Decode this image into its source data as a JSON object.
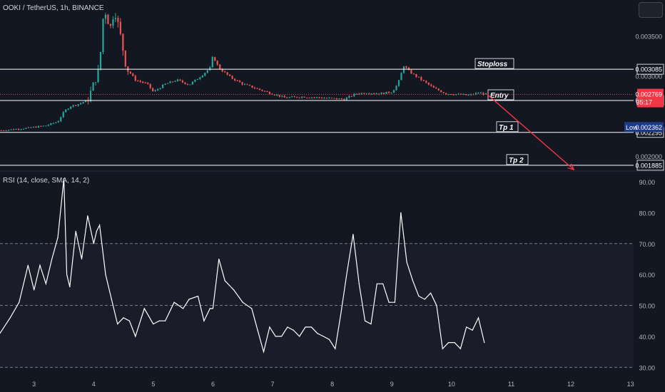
{
  "symbol_title": "OOKI / TetherUS, 1h, BINANCE",
  "rsi_title": "RSI (14, close, SMA, 14, 2)",
  "colors": {
    "background": "#131722",
    "up": "#26a69a",
    "down": "#ef5350",
    "rsi_line": "#ffffff",
    "level_line": "#ffffff",
    "projection_arrow": "#f23645",
    "current_price_tag": "#f23645",
    "low_tag": "#1e3a8a",
    "rsi_band": "#1a1d29"
  },
  "levels": [
    {
      "name": "Stoploss",
      "value": "0.003085",
      "label": "Stoploss"
    },
    {
      "name": "Entry",
      "value": "0.002694",
      "label": "Entry"
    },
    {
      "name": "Tp 1",
      "value": "0.002295",
      "label": "Tp 1"
    },
    {
      "name": "Tp 2",
      "value": "0.001885",
      "label": "Tp 2"
    }
  ],
  "price_scale": {
    "ticks": [
      "0.003500",
      "0.003000",
      "0.002000"
    ]
  },
  "current_price": {
    "value": "0.002769",
    "countdown": "35:17"
  },
  "low_marker": {
    "label": "Low",
    "value": "0.002362"
  },
  "rsi_scale": {
    "ticks": [
      "90.00",
      "80.00",
      "70.00",
      "60.00",
      "50.00",
      "40.00",
      "30.00"
    ]
  },
  "x_axis": {
    "ticks": [
      "3",
      "4",
      "5",
      "6",
      "7",
      "8",
      "9",
      "10",
      "11",
      "12",
      "13"
    ]
  },
  "chart_data": [
    {
      "type": "candlestick",
      "title": "OOKI / TetherUS, 1h, BINANCE",
      "x_unit": "day",
      "ylim": [
        0.00183,
        0.00395
      ],
      "xlim": [
        2.43,
        13.1
      ],
      "series": [
        {
          "name": "OOKI / TetherUS",
          "x": [
            2.45,
            2.9,
            3.2,
            3.4,
            3.5,
            3.6,
            3.75,
            3.9,
            4.0,
            4.1,
            4.15,
            4.2,
            4.28,
            4.35,
            4.45,
            4.55,
            4.7,
            4.9,
            5.0,
            5.2,
            5.4,
            5.6,
            5.8,
            5.95,
            6.0,
            6.1,
            6.3,
            6.5,
            6.7,
            6.9,
            7.2,
            7.5,
            7.8,
            8.0,
            8.2,
            8.4,
            8.6,
            8.8,
            9.0,
            9.1,
            9.2,
            9.3,
            9.5,
            9.7,
            9.9,
            10.1,
            10.3,
            10.45,
            10.6
          ],
          "close": [
            0.00232,
            0.00235,
            0.00238,
            0.00243,
            0.00255,
            0.00262,
            0.00265,
            0.0027,
            0.0029,
            0.0031,
            0.0037,
            0.0038,
            0.0036,
            0.00385,
            0.0035,
            0.0031,
            0.00295,
            0.0029,
            0.0028,
            0.0029,
            0.00295,
            0.00289,
            0.003,
            0.0031,
            0.00325,
            0.0031,
            0.00298,
            0.0029,
            0.00285,
            0.0028,
            0.00273,
            0.00274,
            0.00273,
            0.00272,
            0.00271,
            0.00278,
            0.00279,
            0.00278,
            0.0028,
            0.0029,
            0.00313,
            0.00305,
            0.00295,
            0.00285,
            0.00278,
            0.00277,
            0.00276,
            0.00279,
            0.00277
          ]
        }
      ],
      "levels": [
        {
          "name": "Stoploss",
          "value": 0.003085
        },
        {
          "name": "Entry",
          "value": 0.002694
        },
        {
          "name": "Tp 1",
          "value": 0.002295
        },
        {
          "name": "Tp 2",
          "value": 0.001885
        }
      ],
      "projection": {
        "from": {
          "x": 10.6,
          "y": 0.002769
        },
        "to": {
          "x": 12.05,
          "y": 0.00183
        }
      },
      "current_price": 0.002769,
      "low": 0.002362
    },
    {
      "type": "line",
      "title": "RSI (14, close, SMA, 14, 2)",
      "ylim": [
        28,
        93
      ],
      "band": [
        30,
        70
      ],
      "midline": 50,
      "series": [
        {
          "name": "RSI",
          "x": [
            2.43,
            2.6,
            2.75,
            2.9,
            3.0,
            3.1,
            3.2,
            3.3,
            3.4,
            3.5,
            3.55,
            3.6,
            3.7,
            3.8,
            3.9,
            4.0,
            4.05,
            4.1,
            4.2,
            4.3,
            4.4,
            4.5,
            4.6,
            4.7,
            4.85,
            5.0,
            5.1,
            5.2,
            5.35,
            5.5,
            5.6,
            5.75,
            5.85,
            5.95,
            6.0,
            6.1,
            6.2,
            6.35,
            6.5,
            6.65,
            6.75,
            6.85,
            6.95,
            7.05,
            7.15,
            7.25,
            7.35,
            7.45,
            7.55,
            7.65,
            7.75,
            7.85,
            7.95,
            8.05,
            8.15,
            8.25,
            8.35,
            8.45,
            8.55,
            8.65,
            8.75,
            8.85,
            8.95,
            9.05,
            9.15,
            9.2,
            9.25,
            9.35,
            9.45,
            9.55,
            9.65,
            9.75,
            9.85,
            9.95,
            10.05,
            10.15,
            10.25,
            10.35,
            10.45,
            10.55
          ],
          "values": [
            41,
            46,
            51,
            63,
            55,
            63,
            57,
            65,
            72,
            91,
            60,
            56,
            74,
            65,
            79,
            70,
            74,
            76,
            60,
            52,
            44,
            46,
            45,
            40,
            49,
            44,
            45,
            45,
            51,
            49,
            52,
            53,
            45,
            49,
            49,
            65,
            58,
            55,
            51,
            49,
            42,
            35,
            43,
            40,
            40,
            43,
            42,
            40,
            43,
            43,
            41,
            40,
            39,
            36,
            48,
            61,
            73,
            57,
            45,
            44,
            57,
            57,
            51,
            51,
            80,
            72,
            64,
            58,
            53,
            52,
            54,
            50,
            36,
            38,
            38,
            36,
            43,
            42,
            46,
            38
          ]
        }
      ]
    }
  ]
}
